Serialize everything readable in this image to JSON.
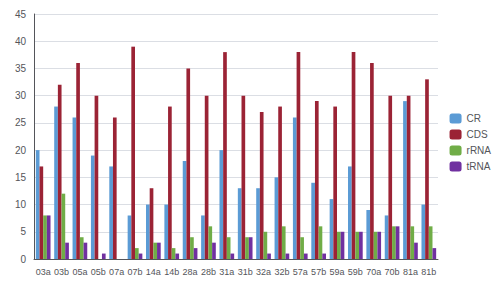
{
  "chart_data": {
    "type": "bar",
    "categories": [
      "03a",
      "03b",
      "05a",
      "05b",
      "07a",
      "07b",
      "14a",
      "14b",
      "28a",
      "28b",
      "31a",
      "31b",
      "32a",
      "32b",
      "57a",
      "57b",
      "59a",
      "59b",
      "70a",
      "70b",
      "81a",
      "81b"
    ],
    "series": [
      {
        "name": "CR",
        "color": "#5B9BD5",
        "values": [
          20,
          28,
          26,
          19,
          17,
          8,
          10,
          10,
          18,
          8,
          20,
          13,
          13,
          15,
          26,
          14,
          11,
          17,
          9,
          8,
          29,
          10
        ]
      },
      {
        "name": "CDS",
        "color": "#9B2335",
        "values": [
          17,
          32,
          36,
          30,
          26,
          39,
          13,
          28,
          35,
          30,
          38,
          30,
          27,
          28,
          38,
          29,
          28,
          38,
          36,
          30,
          30,
          33
        ]
      },
      {
        "name": "rRNA",
        "color": "#70AD47",
        "values": [
          8,
          12,
          4,
          0,
          0,
          2,
          3,
          2,
          4,
          6,
          4,
          4,
          5,
          6,
          4,
          6,
          5,
          5,
          5,
          6,
          6,
          6
        ]
      },
      {
        "name": "tRNA",
        "color": "#7030A0",
        "values": [
          8,
          3,
          3,
          1,
          0,
          1,
          3,
          1,
          2,
          3,
          1,
          4,
          1,
          1,
          1,
          1,
          5,
          5,
          5,
          6,
          3,
          2
        ]
      }
    ],
    "ylim": [
      0,
      45
    ],
    "yticks": [
      0,
      5,
      10,
      15,
      20,
      25,
      30,
      35,
      40,
      45
    ],
    "grid": true,
    "legend": "right"
  }
}
